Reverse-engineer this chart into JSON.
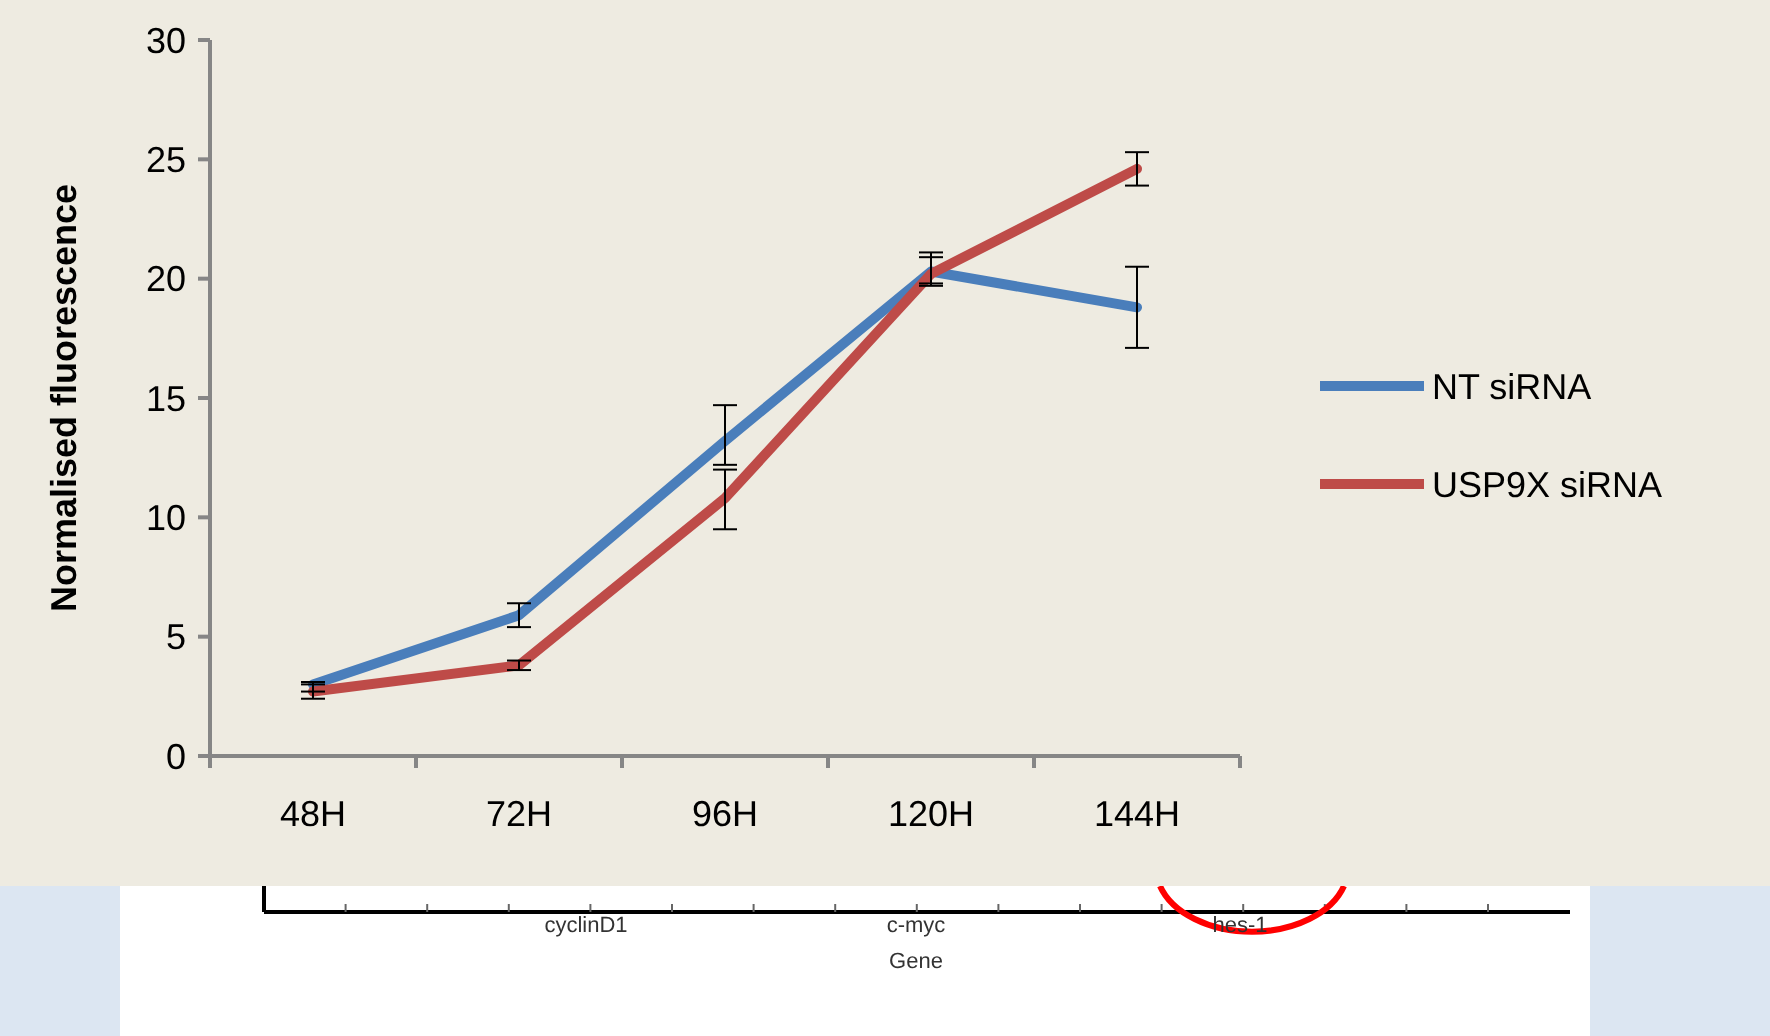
{
  "chart_data": {
    "type": "line",
    "ylabel": "Normalised fluorescence",
    "categories": [
      "48H",
      "72H",
      "96H",
      "120H",
      "144H"
    ],
    "series": [
      {
        "name": "NT siRNA",
        "color": "#4a7ebb",
        "values": [
          3.0,
          5.9,
          13.2,
          20.3,
          18.8
        ],
        "errors": [
          [
            2.7,
            3.1
          ],
          [
            5.4,
            6.4
          ],
          [
            12.2,
            14.7
          ],
          [
            19.7,
            20.9
          ],
          [
            17.1,
            20.5
          ]
        ]
      },
      {
        "name": "USP9X siRNA",
        "color": "#be4b48",
        "values": [
          2.7,
          3.8,
          10.8,
          20.2,
          24.6
        ],
        "errors": [
          [
            2.4,
            3.0
          ],
          [
            3.6,
            4.0
          ],
          [
            9.5,
            12.0
          ],
          [
            19.8,
            21.1
          ],
          [
            23.9,
            25.3
          ]
        ]
      }
    ],
    "ylim": [
      0,
      30
    ],
    "yticks": [
      0,
      5,
      10,
      15,
      20,
      25,
      30
    ],
    "grid": false,
    "legend": "right",
    "marker": "none",
    "line_style": "solid",
    "annotations": [
      "cyclinD1",
      "c-myc",
      "hes-1",
      "Gene"
    ]
  }
}
